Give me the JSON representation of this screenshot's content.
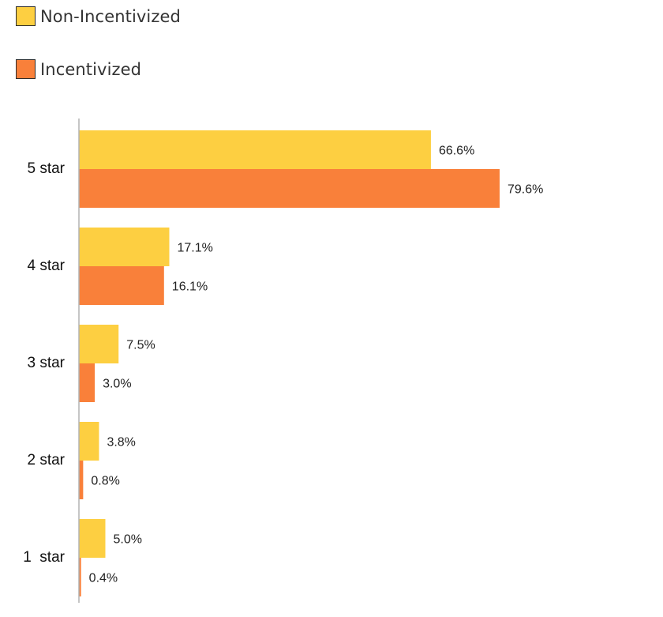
{
  "colors": {
    "non_incentivized": "#FDCF41",
    "incentivized": "#F9803A",
    "axis": "#b3b3b3"
  },
  "legend": {
    "placement": "top-left",
    "items": [
      {
        "label": "Non-Incentivized",
        "color": "#FDCF41"
      },
      {
        "label": "Incentivized",
        "color": "#F9803A"
      }
    ]
  },
  "chart_data": {
    "type": "bar",
    "orientation": "horizontal",
    "title": "",
    "xlabel": "",
    "ylabel": "",
    "unit": "%",
    "xlim": [
      0,
      100
    ],
    "grid": false,
    "categories": [
      "5 star",
      "4 star",
      "3 star",
      "2 star",
      "1  star"
    ],
    "series": [
      {
        "name": "Non-Incentivized",
        "color": "#FDCF41",
        "values": [
          66.6,
          17.1,
          7.5,
          3.8,
          5.0
        ],
        "labels": [
          "66.6%",
          "17.1%",
          "7.5%",
          "3.8%",
          "5.0%"
        ]
      },
      {
        "name": "Incentivized",
        "color": "#F9803A",
        "values": [
          79.6,
          16.1,
          3.0,
          0.8,
          0.4
        ],
        "labels": [
          "79.6%",
          "16.1%",
          "3.0%",
          "0.8%",
          "0.4%"
        ]
      }
    ]
  }
}
